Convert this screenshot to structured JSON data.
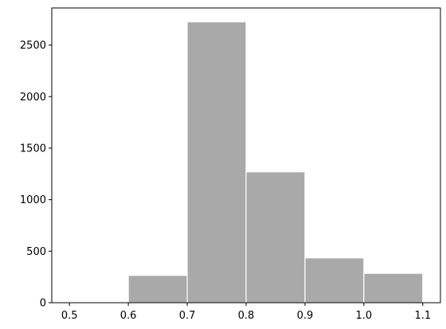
{
  "chart_data": {
    "type": "bar",
    "subtype": "histogram",
    "title": "",
    "xlabel": "",
    "ylabel": "",
    "bins": [
      {
        "start": 0.5,
        "end": 0.6,
        "count": 0
      },
      {
        "start": 0.6,
        "end": 0.7,
        "count": 265
      },
      {
        "start": 0.7,
        "end": 0.8,
        "count": 2725
      },
      {
        "start": 0.8,
        "end": 0.9,
        "count": 1270
      },
      {
        "start": 0.9,
        "end": 1.0,
        "count": 435
      },
      {
        "start": 1.0,
        "end": 1.1,
        "count": 285
      }
    ],
    "xlim": [
      0.47,
      1.13
    ],
    "ylim": [
      0,
      2860
    ],
    "xticks": [
      "0.5",
      "0.6",
      "0.7",
      "0.8",
      "0.9",
      "1.0",
      "1.1"
    ],
    "xtick_values": [
      0.5,
      0.6,
      0.7,
      0.8,
      0.9,
      1.0,
      1.1
    ],
    "yticks": [
      "0",
      "500",
      "1000",
      "1500",
      "2000",
      "2500"
    ],
    "ytick_values": [
      0,
      500,
      1000,
      1500,
      2000,
      2500
    ],
    "bar_color": "#a9a9a9",
    "edge_color": "#ffffff",
    "grid": false,
    "legend": "none"
  }
}
